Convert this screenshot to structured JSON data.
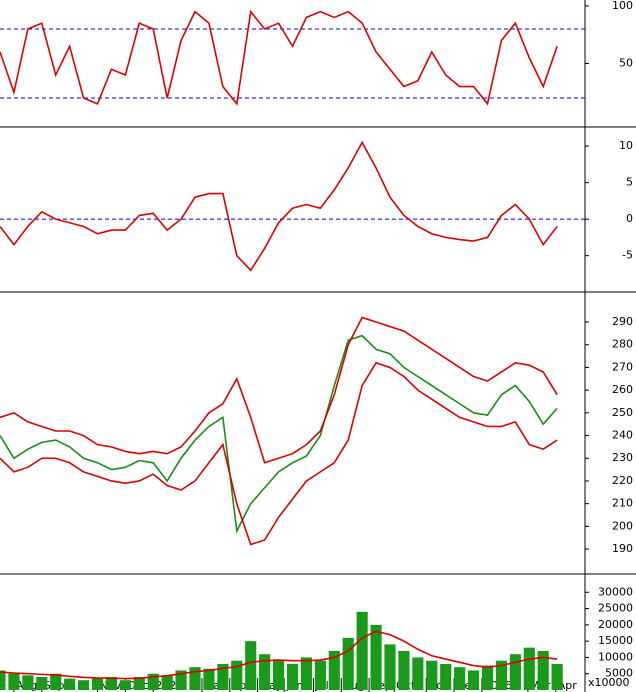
{
  "chart_data": [
    {
      "type": "line",
      "xlim": [
        0,
        42
      ],
      "ylim": [
        -3.4,
        103.4
      ],
      "yticks": [
        50,
        100
      ],
      "hlines": [
        80,
        20
      ],
      "hline_color": "#0000cc",
      "series": [
        {
          "color": "#dd0000",
          "values": [
            60,
            25,
            80,
            85,
            40,
            65,
            20,
            15,
            45,
            40,
            85,
            80,
            20,
            70,
            95,
            85,
            30,
            15,
            95,
            80,
            85,
            65,
            90,
            95,
            90,
            95,
            85,
            60,
            45,
            30,
            35,
            60,
            40,
            30,
            30,
            15,
            70,
            85,
            55,
            30,
            65
          ]
        }
      ]
    },
    {
      "type": "line",
      "xlim": [
        0,
        42
      ],
      "ylim": [
        -9.7,
        12.2
      ],
      "yticks": [
        10,
        5,
        0,
        -5
      ],
      "hlines": [
        0
      ],
      "hline_color": "#0000cc",
      "series": [
        {
          "color": "#dd0000",
          "values": [
            -1,
            -3.5,
            -1,
            1,
            0,
            -0.5,
            -1,
            -2,
            -1.5,
            -1.5,
            0.5,
            0.8,
            -1.5,
            0,
            3,
            3.5,
            3.5,
            -5,
            -7,
            -4,
            -0.5,
            1.5,
            2,
            1.5,
            4,
            7,
            10.5,
            7,
            3,
            0.5,
            -1,
            -2,
            -2.5,
            -2.8,
            -3,
            -2.5,
            0.5,
            2,
            0,
            -3.5,
            -1
          ]
        }
      ]
    },
    {
      "type": "line",
      "xlim": [
        0,
        42
      ],
      "ylim": [
        179.9,
        301.9
      ],
      "yticks": [
        190,
        200,
        210,
        220,
        230,
        240,
        250,
        260,
        270,
        280,
        290
      ],
      "series": [
        {
          "color": "#1a8c1a",
          "values": [
            240,
            230,
            234,
            237,
            238,
            235,
            230,
            228,
            225,
            226,
            229,
            228,
            220,
            230,
            238,
            244,
            248,
            198,
            210,
            217,
            224,
            228,
            231,
            240,
            262,
            282,
            284,
            278,
            276,
            270,
            266,
            262,
            258,
            254,
            250,
            249,
            258,
            262,
            255,
            245,
            252
          ]
        },
        {
          "color": "#dd0000",
          "values": [
            248,
            250,
            246,
            244,
            242,
            242,
            240,
            236,
            235,
            233,
            232,
            233,
            232,
            235,
            242,
            250,
            254,
            265,
            248,
            228,
            230,
            232,
            236,
            242,
            258,
            280,
            292,
            290,
            288,
            286,
            282,
            278,
            274,
            270,
            266,
            264,
            268,
            272,
            271,
            268,
            258
          ]
        },
        {
          "color": "#dd0000",
          "values": [
            230,
            224,
            226,
            230,
            230,
            228,
            224,
            222,
            220,
            219,
            220,
            223,
            218,
            216,
            220,
            228,
            236,
            210,
            192,
            194,
            204,
            212,
            220,
            224,
            228,
            238,
            262,
            272,
            270,
            266,
            260,
            256,
            252,
            248,
            246,
            244,
            244,
            246,
            236,
            234,
            238
          ]
        }
      ]
    },
    {
      "type": "bar",
      "xlim": [
        0,
        42
      ],
      "ylim": [
        0,
        35000
      ],
      "yticks": [
        5000,
        10000,
        15000,
        20000,
        25000,
        30000
      ],
      "unit_label": "x10000",
      "xticks": [
        {
          "value": 1,
          "label": "Aug"
        },
        {
          "value": 3,
          "label": "Sep"
        },
        {
          "value": 7,
          "label": "Nov"
        },
        {
          "value": 9,
          "label": "Dec"
        },
        {
          "value": 11,
          "label": "2025"
        },
        {
          "value": 14.5,
          "label": "Mar"
        },
        {
          "value": 16.5,
          "label": "Apr"
        },
        {
          "value": 18.5,
          "label": "May"
        },
        {
          "value": 20.4,
          "label": "Jun"
        },
        {
          "value": 22.5,
          "label": "Jul"
        },
        {
          "value": 24.5,
          "label": "Aug"
        },
        {
          "value": 26.5,
          "label": "Sep"
        },
        {
          "value": 28.3,
          "label": "Oct"
        },
        {
          "value": 30.6,
          "label": "Nov"
        },
        {
          "value": 32.6,
          "label": "Dec"
        },
        {
          "value": 34.6,
          "label": "2026"
        },
        {
          "value": 37.9,
          "label": "Mar"
        },
        {
          "value": 39.9,
          "label": "Apr"
        }
      ],
      "series": [
        {
          "kind": "bar",
          "color": "#1a9a1a",
          "values": [
            6000,
            5000,
            4500,
            4000,
            5000,
            3500,
            3000,
            3500,
            4000,
            3000,
            4000,
            5000,
            4500,
            6000,
            7000,
            6500,
            8000,
            9000,
            15000,
            11000,
            9000,
            8000,
            10000,
            9000,
            12000,
            16000,
            24000,
            20000,
            14000,
            12000,
            10000,
            9000,
            8000,
            7000,
            6000,
            7500,
            9000,
            11000,
            13000,
            12000,
            8000
          ]
        },
        {
          "kind": "line",
          "color": "#dd0000",
          "values": [
            5500,
            5200,
            5000,
            4800,
            4600,
            4200,
            3900,
            3700,
            3600,
            3500,
            3600,
            4000,
            4400,
            5000,
            5600,
            6000,
            6600,
            7200,
            8500,
            9000,
            9200,
            9000,
            9000,
            9200,
            10000,
            12000,
            16000,
            18000,
            17000,
            15000,
            12500,
            10500,
            9500,
            8500,
            7500,
            7000,
            7500,
            8500,
            9500,
            10000,
            9500
          ]
        }
      ]
    }
  ]
}
